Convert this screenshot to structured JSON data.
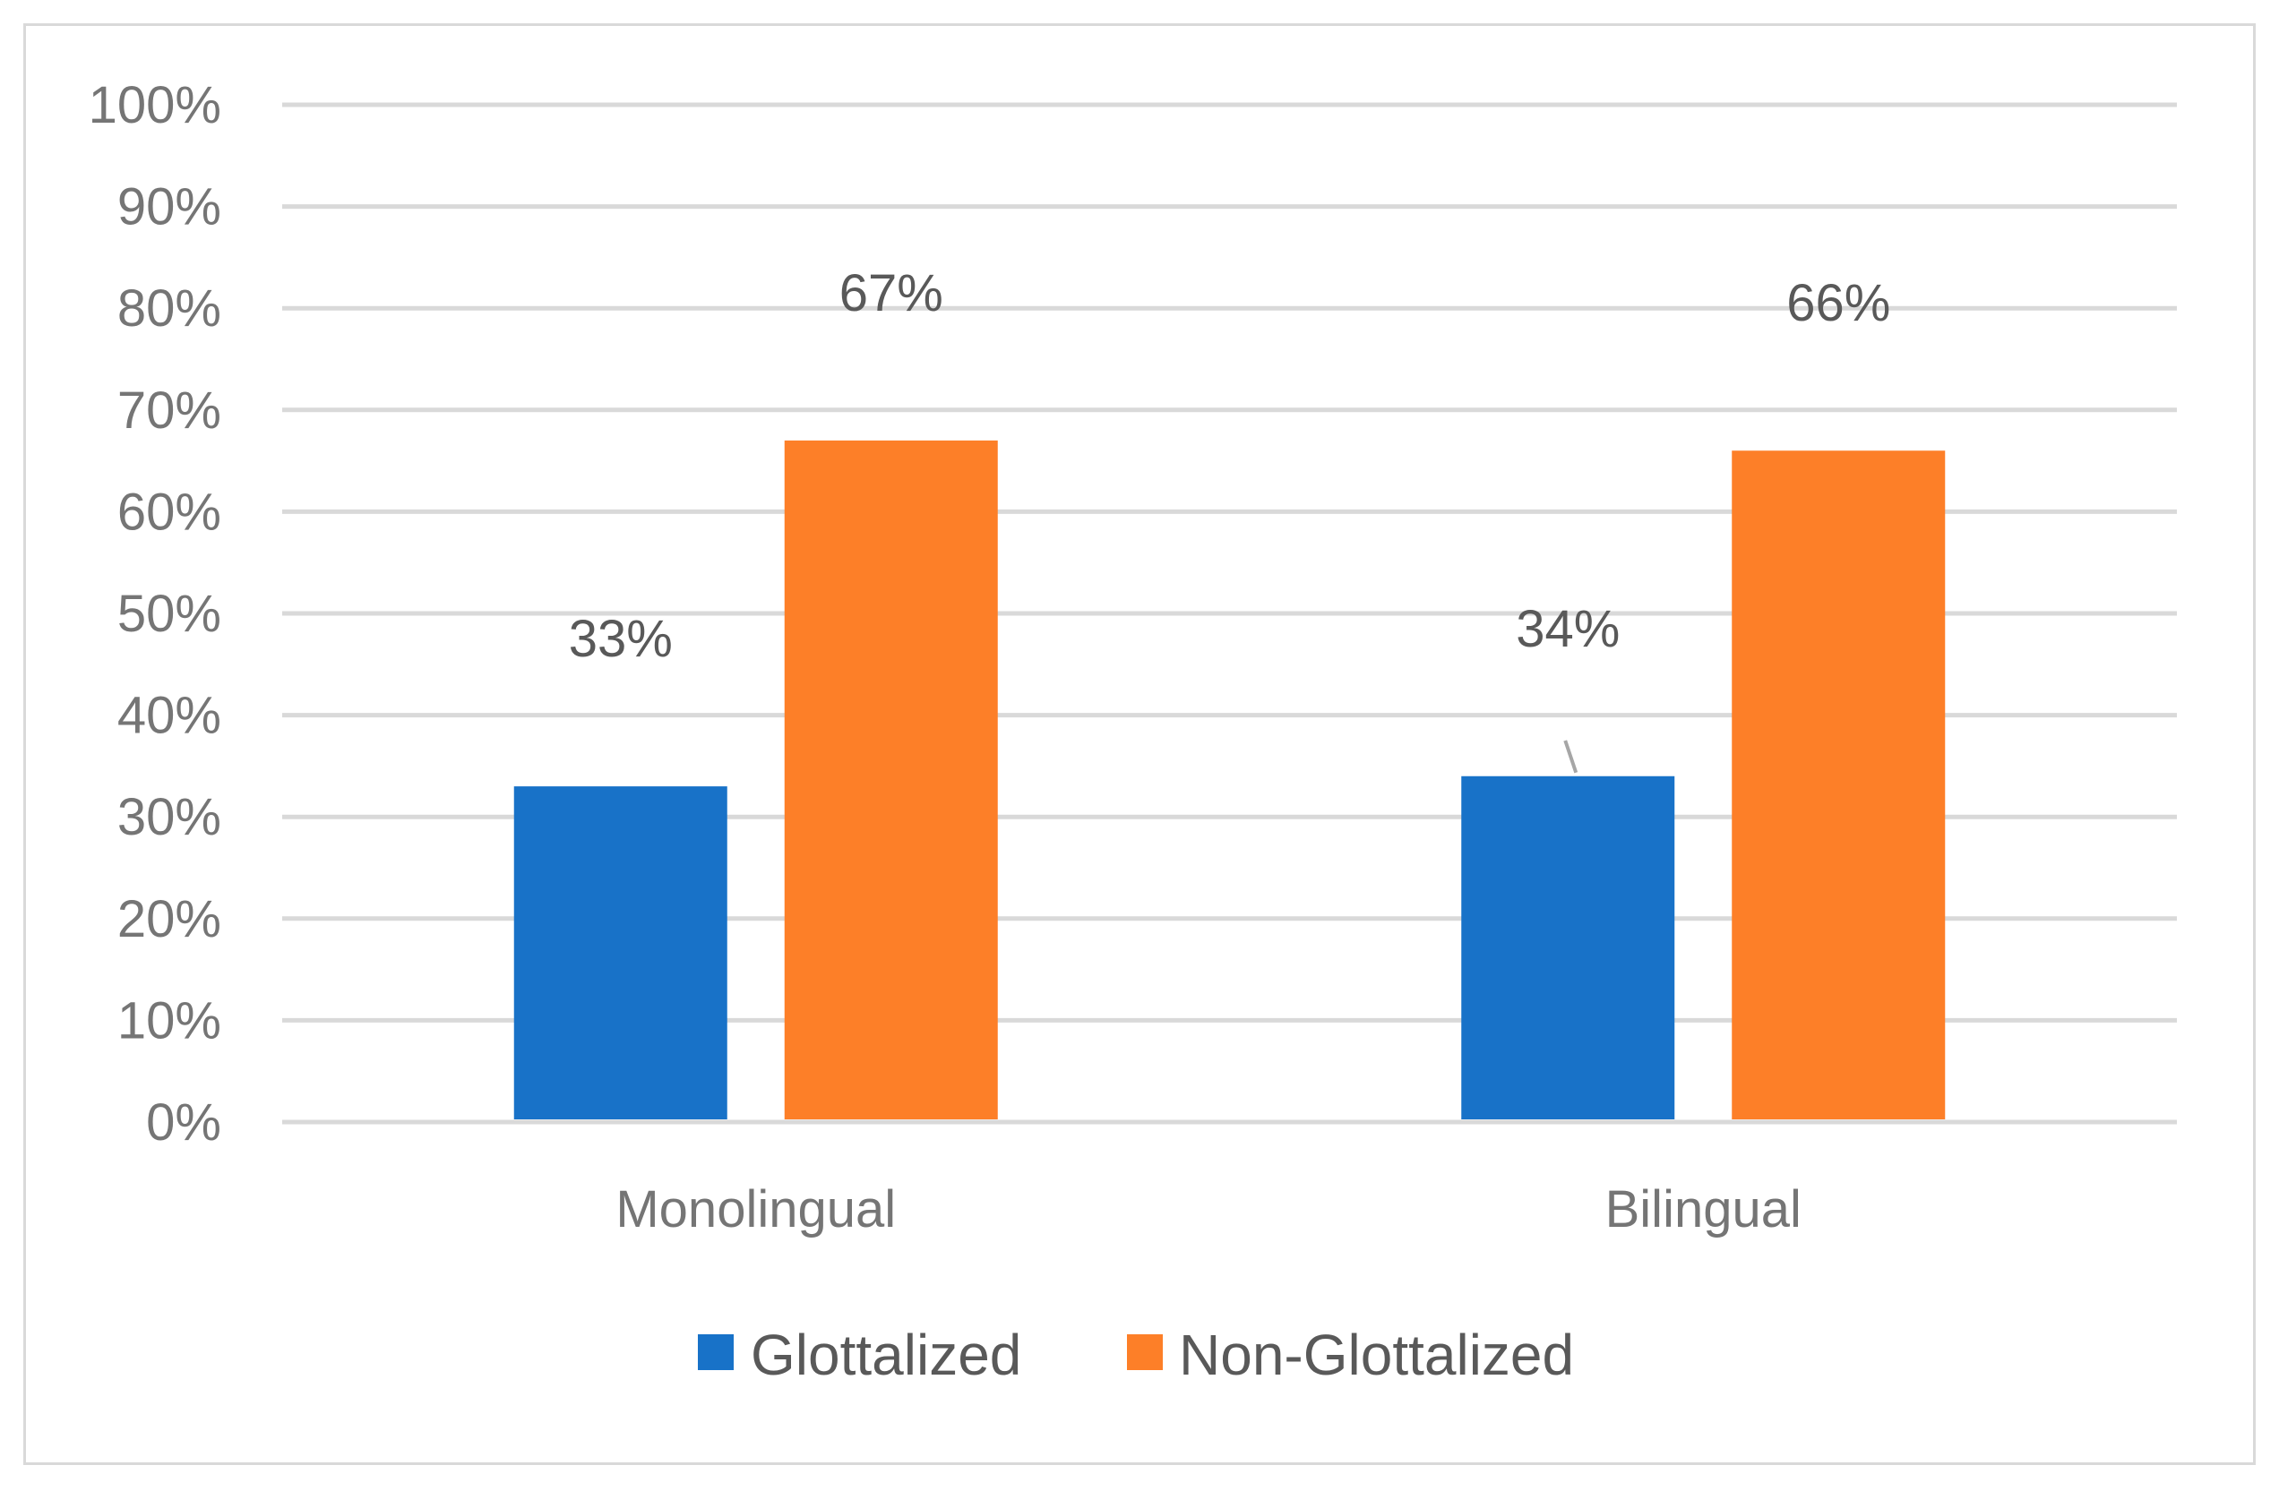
{
  "chart_data": {
    "type": "bar",
    "title": "",
    "xlabel": "",
    "ylabel": "",
    "categories": [
      "Monolingual",
      "Bilingual"
    ],
    "series": [
      {
        "name": "Glottalized",
        "values": [
          33,
          34
        ],
        "labels": [
          "33%",
          "34%"
        ],
        "color": "#1872C8"
      },
      {
        "name": "Non-Glottalized",
        "values": [
          67,
          66
        ],
        "labels": [
          "67%",
          "66%"
        ],
        "color": "#FD7F28"
      }
    ],
    "ylim": [
      0,
      100
    ],
    "yticks": [
      0,
      10,
      20,
      30,
      40,
      50,
      60,
      70,
      80,
      90,
      100
    ],
    "ytick_labels": [
      "0%",
      "10%",
      "20%",
      "30%",
      "40%",
      "50%",
      "60%",
      "70%",
      "80%",
      "90%",
      "100%"
    ],
    "grid": true,
    "legend_position": "bottom",
    "colors": {
      "grid": "#d9d9d9",
      "tick_text": "#757575",
      "label_text": "#595959",
      "frame": "#d9d9d9",
      "leader_line": "#a6a6a6"
    }
  }
}
